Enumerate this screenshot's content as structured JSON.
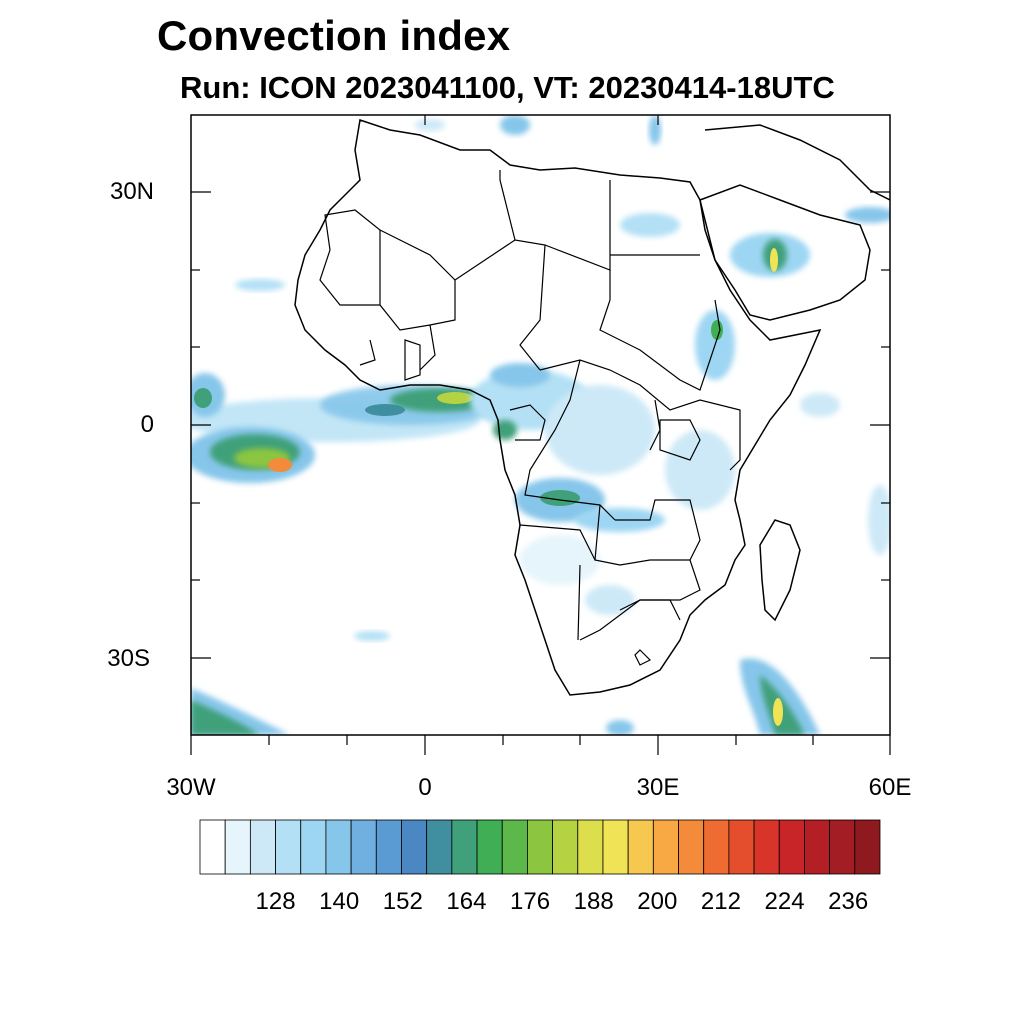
{
  "title": "Convection index",
  "subtitle": "Run: ICON 2023041100,  VT: 20230414-18UTC",
  "axes": {
    "lat_labels": [
      "30N",
      "0",
      "30S"
    ],
    "lon_labels": [
      "30W",
      "0",
      "30E",
      "60E"
    ]
  },
  "colorbar": {
    "labels": [
      "128",
      "140",
      "152",
      "164",
      "176",
      "188",
      "200",
      "212",
      "224",
      "236"
    ],
    "colors": [
      "#ffffff",
      "#e6f4fb",
      "#cde9f7",
      "#b3e0f5",
      "#9dd6f3",
      "#86c6ea",
      "#6fb0e0",
      "#5a9bd3",
      "#4b87c2",
      "#3f8fa1",
      "#40a07a",
      "#3fae55",
      "#5cb84a",
      "#8cc640",
      "#b5d243",
      "#dcde4c",
      "#f0e356",
      "#f7c84f",
      "#f8a944",
      "#f48b3b",
      "#ee6c32",
      "#e44e2d",
      "#d8342a",
      "#c82529",
      "#b41f26",
      "#a21d24",
      "#8e1a20"
    ]
  }
}
